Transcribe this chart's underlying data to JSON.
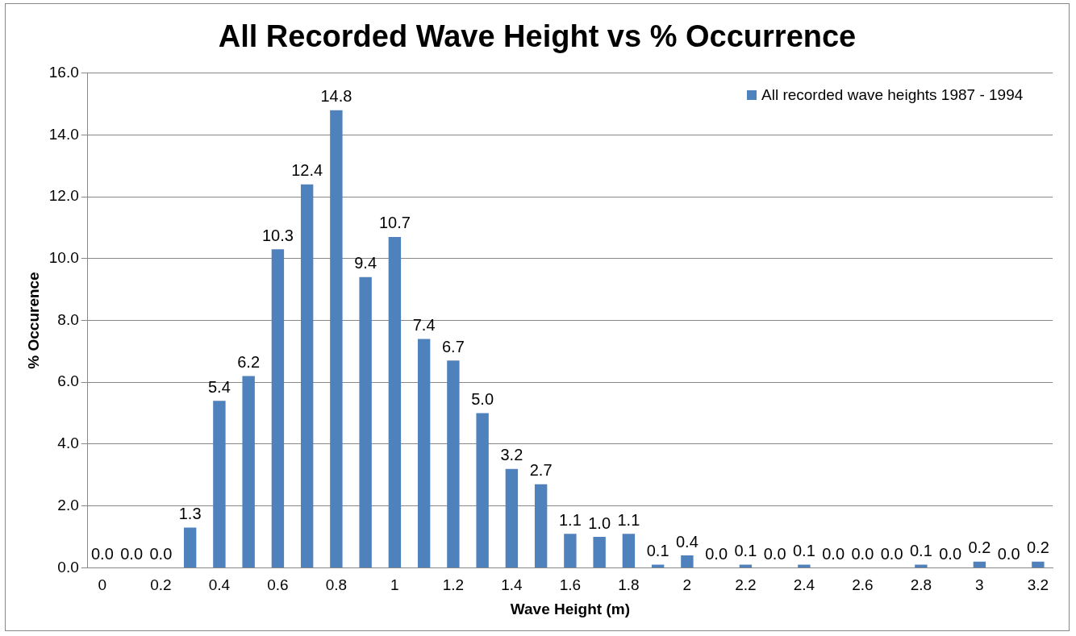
{
  "chart_data": {
    "type": "bar",
    "title": "All Recorded Wave Height vs % Occurrence",
    "xlabel": "Wave Height (m)",
    "ylabel": "% Occurence",
    "categories": [
      "0",
      null,
      "0.2",
      null,
      "0.4",
      null,
      "0.6",
      null,
      "0.8",
      null,
      "1",
      null,
      "1.2",
      null,
      "1.4",
      null,
      "1.6",
      null,
      "1.8",
      null,
      "2",
      null,
      "2.2",
      null,
      "2.4",
      null,
      "2.6",
      null,
      "2.8",
      null,
      "3",
      null,
      "3.2"
    ],
    "series": [
      {
        "name": "All recorded wave heights 1987 - 1994",
        "color": "#4f81bd",
        "values": [
          0.0,
          0.0,
          0.0,
          1.3,
          5.4,
          6.2,
          10.3,
          12.4,
          14.8,
          9.4,
          10.7,
          7.4,
          6.7,
          5.0,
          3.2,
          2.7,
          1.1,
          1.0,
          1.1,
          0.1,
          0.4,
          0.0,
          0.1,
          0.0,
          0.1,
          0.0,
          0.0,
          0.0,
          0.1,
          0.0,
          0.2,
          0.0,
          0.2
        ],
        "value_labels": [
          "0.0",
          "0.0",
          "0.0",
          "1.3",
          "5.4",
          "6.2",
          "10.3",
          "12.4",
          "14.8",
          "9.4",
          "10.7",
          "7.4",
          "6.7",
          "5.0",
          "3.2",
          "2.7",
          "1.1",
          "1.0",
          "1.1",
          "0.1",
          "0.4",
          "0.0",
          "0.1",
          "0.0",
          "0.1",
          "0.0",
          "0.0",
          "0.0",
          "0.1",
          "0.0",
          "0.2",
          "0.0",
          "0.2"
        ]
      }
    ],
    "ylim": [
      0,
      16
    ],
    "yticks": [
      {
        "value": 0,
        "label": "0.0"
      },
      {
        "value": 2,
        "label": "2.0"
      },
      {
        "value": 4,
        "label": "4.0"
      },
      {
        "value": 6,
        "label": "6.0"
      },
      {
        "value": 8,
        "label": "8.0"
      },
      {
        "value": 10,
        "label": "10.0"
      },
      {
        "value": 12,
        "label": "12.0"
      },
      {
        "value": 14,
        "label": "14.0"
      },
      {
        "value": 16,
        "label": "16.0"
      }
    ],
    "grid": "y",
    "legend": "top right"
  }
}
